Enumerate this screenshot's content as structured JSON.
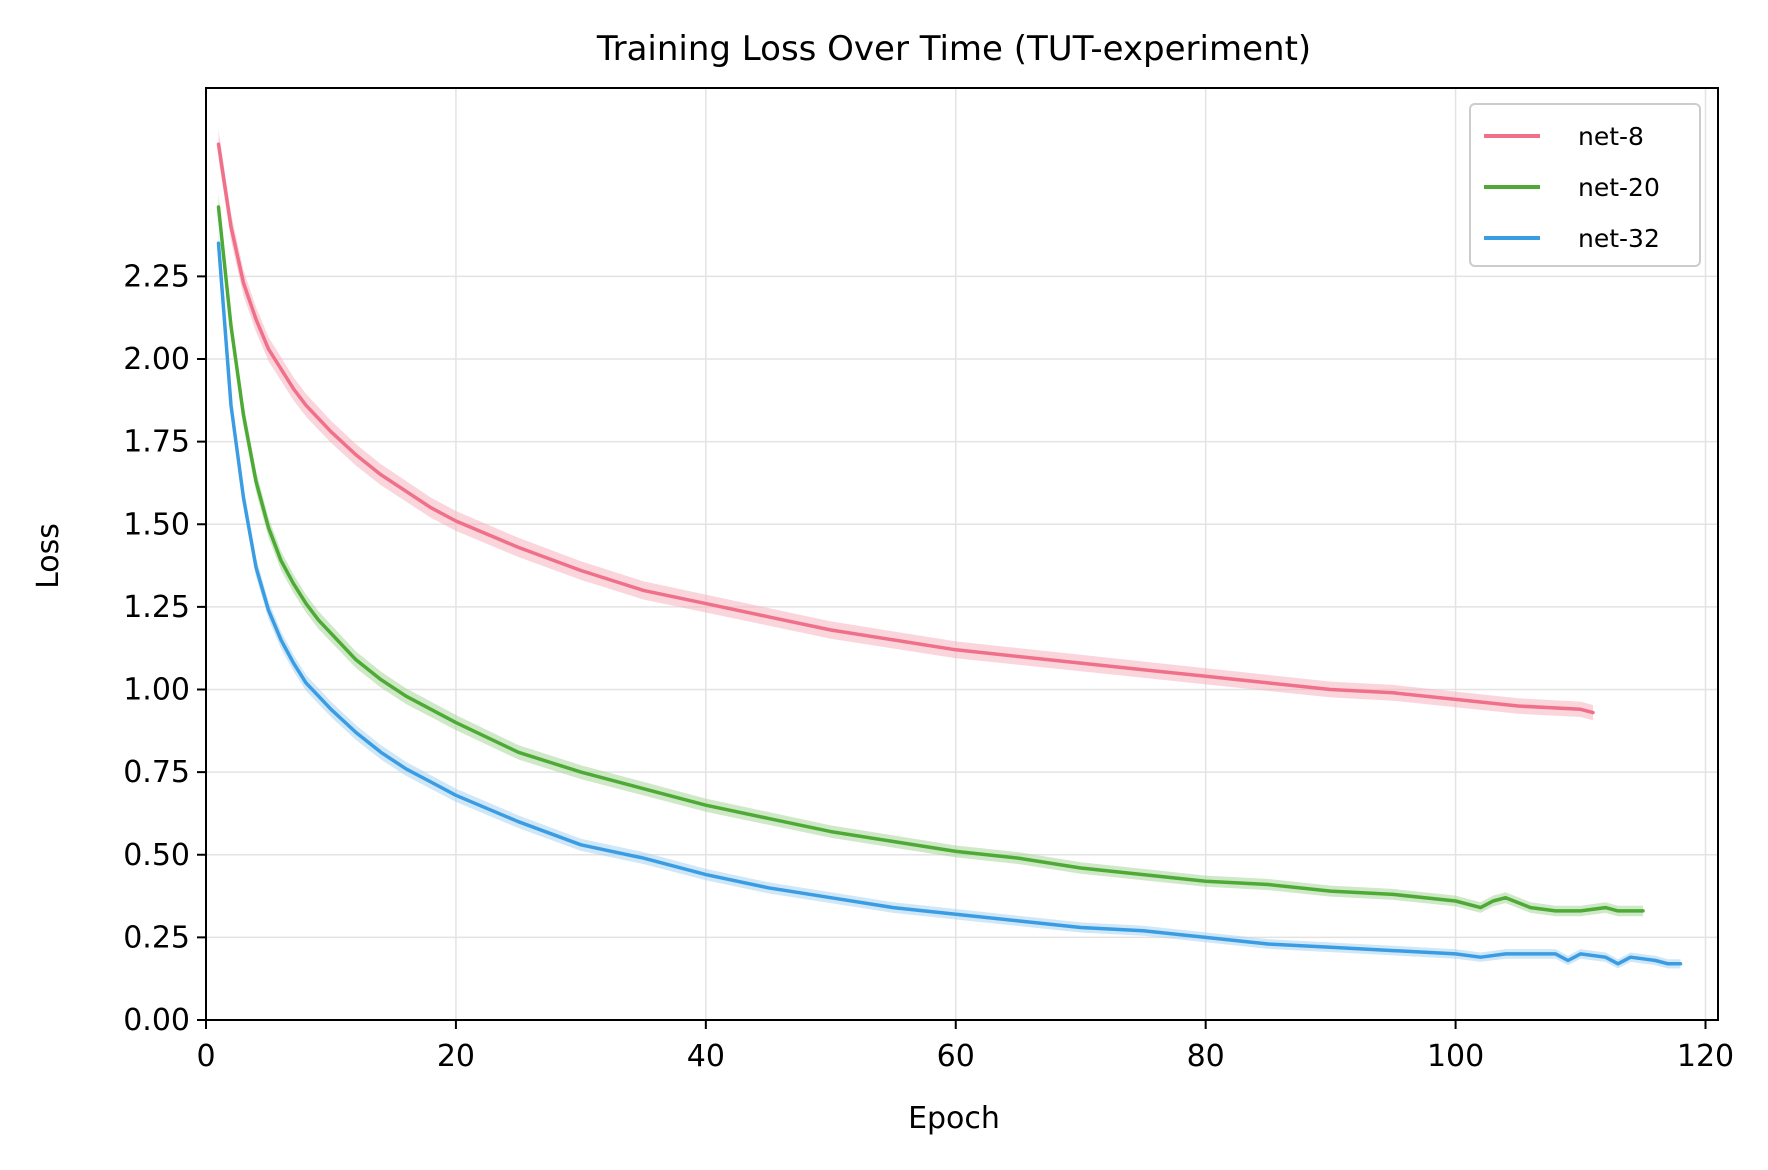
{
  "chart_data": {
    "type": "line",
    "title": "Training Loss Over Time (TUT-experiment)",
    "xlabel": "Epoch",
    "ylabel": "Loss",
    "xlim": [
      0,
      121
    ],
    "ylim": [
      0,
      2.82
    ],
    "xticks": [
      0,
      20,
      40,
      60,
      80,
      100,
      120
    ],
    "xtick_labels": [
      "0",
      "20",
      "40",
      "60",
      "80",
      "100",
      "120"
    ],
    "yticks": [
      0,
      0.25,
      0.5,
      0.75,
      1.0,
      1.25,
      1.5,
      1.75,
      2.0,
      2.25
    ],
    "ytick_labels": [
      "0.00",
      "0.25",
      "0.50",
      "0.75",
      "1.00",
      "1.25",
      "1.50",
      "1.75",
      "2.00",
      "2.25"
    ],
    "grid": true,
    "legend_position": "top-right",
    "series": [
      {
        "name": "net-8",
        "color": "#f0708a",
        "band_color": "#f5b3c0",
        "x": [
          1,
          2,
          3,
          4,
          5,
          6,
          7,
          8,
          9,
          10,
          12,
          14,
          16,
          18,
          20,
          25,
          30,
          35,
          40,
          45,
          50,
          55,
          60,
          65,
          70,
          75,
          80,
          85,
          90,
          95,
          100,
          105,
          110,
          111
        ],
        "y": [
          2.65,
          2.4,
          2.23,
          2.12,
          2.03,
          1.97,
          1.91,
          1.86,
          1.82,
          1.78,
          1.71,
          1.65,
          1.6,
          1.55,
          1.51,
          1.43,
          1.36,
          1.3,
          1.26,
          1.22,
          1.18,
          1.15,
          1.12,
          1.1,
          1.08,
          1.06,
          1.04,
          1.02,
          1.0,
          0.99,
          0.97,
          0.95,
          0.94,
          0.93
        ]
      },
      {
        "name": "net-20",
        "color": "#4dab35",
        "band_color": "#a8d69b",
        "x": [
          1,
          2,
          3,
          4,
          5,
          6,
          7,
          8,
          9,
          10,
          12,
          14,
          16,
          18,
          20,
          25,
          30,
          35,
          40,
          45,
          50,
          55,
          60,
          65,
          70,
          75,
          80,
          85,
          90,
          95,
          100,
          102,
          103,
          104,
          106,
          108,
          110,
          112,
          113,
          115
        ],
        "y": [
          2.46,
          2.1,
          1.83,
          1.63,
          1.49,
          1.39,
          1.32,
          1.26,
          1.21,
          1.17,
          1.09,
          1.03,
          0.98,
          0.94,
          0.9,
          0.81,
          0.75,
          0.7,
          0.65,
          0.61,
          0.57,
          0.54,
          0.51,
          0.49,
          0.46,
          0.44,
          0.42,
          0.41,
          0.39,
          0.38,
          0.36,
          0.34,
          0.36,
          0.37,
          0.34,
          0.33,
          0.33,
          0.34,
          0.33,
          0.33
        ]
      },
      {
        "name": "net-32",
        "color": "#3a9de3",
        "band_color": "#a9d3f2",
        "x": [
          1,
          2,
          3,
          4,
          5,
          6,
          7,
          8,
          9,
          10,
          12,
          14,
          16,
          18,
          20,
          25,
          30,
          35,
          40,
          45,
          50,
          55,
          60,
          65,
          70,
          75,
          80,
          85,
          90,
          95,
          100,
          102,
          104,
          106,
          108,
          109,
          110,
          112,
          113,
          114,
          116,
          117,
          118
        ],
        "y": [
          2.35,
          1.86,
          1.58,
          1.37,
          1.24,
          1.15,
          1.08,
          1.02,
          0.98,
          0.94,
          0.87,
          0.81,
          0.76,
          0.72,
          0.68,
          0.6,
          0.53,
          0.49,
          0.44,
          0.4,
          0.37,
          0.34,
          0.32,
          0.3,
          0.28,
          0.27,
          0.25,
          0.23,
          0.22,
          0.21,
          0.2,
          0.19,
          0.2,
          0.2,
          0.2,
          0.18,
          0.2,
          0.19,
          0.17,
          0.19,
          0.18,
          0.17,
          0.17
        ]
      }
    ]
  }
}
